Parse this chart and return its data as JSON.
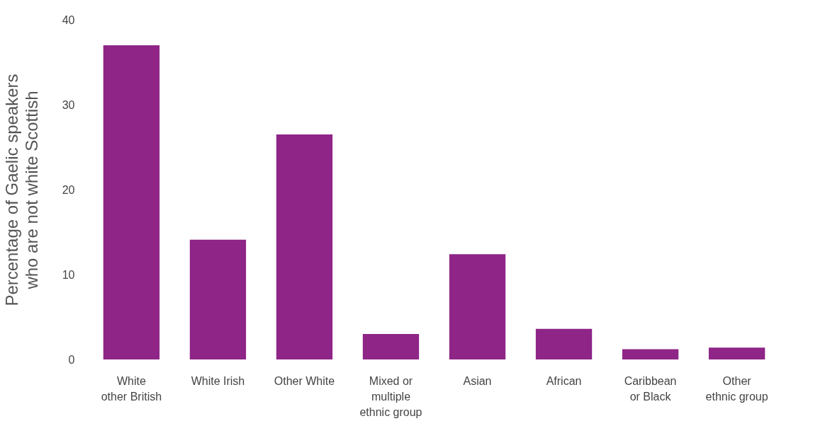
{
  "chart_data": {
    "type": "bar",
    "ylabel": "Percentage of Gaelic speakers\nwho are not white Scottish",
    "categories": [
      "White\nother British",
      "White Irish",
      "Other White",
      "Mixed or\nmultiple\nethnic group",
      "Asian",
      "African",
      "Caribbean\nor Black",
      "Other\nethnic group"
    ],
    "values": [
      37.0,
      14.1,
      26.5,
      3.0,
      12.4,
      3.6,
      1.2,
      1.4
    ],
    "color": "#8e2587",
    "ylim": [
      0,
      40
    ],
    "yticks": [
      0,
      10,
      20,
      30,
      40
    ],
    "grid": false
  }
}
